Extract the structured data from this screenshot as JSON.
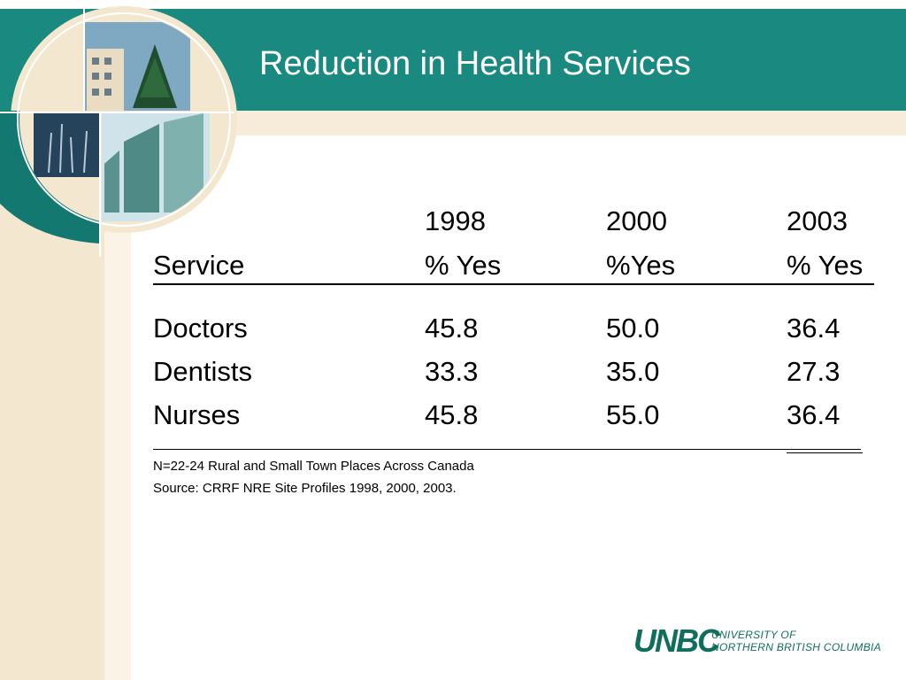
{
  "title": "Reduction in Health Services",
  "table": {
    "year_headers": [
      "1998",
      "2000",
      "2003"
    ],
    "column_headers": [
      "Service",
      "% Yes",
      "%Yes",
      "% Yes"
    ],
    "rows": [
      {
        "service": "Doctors",
        "values": [
          "45.8",
          "50.0",
          "36.4"
        ]
      },
      {
        "service": "Dentists",
        "values": [
          "33.3",
          "35.0",
          "27.3"
        ]
      },
      {
        "service": "Nurses",
        "values": [
          "45.8",
          "55.0",
          "36.4"
        ]
      }
    ]
  },
  "notes": {
    "sample": "N=22-24 Rural and Small Town Places Across Canada",
    "source": "Source: CRRF NRE Site Profiles 1998, 2000, 2003."
  },
  "logo": {
    "mark": "UNBC",
    "line1": "UNIVERSITY OF",
    "line2": "NORTHERN BRITISH COLUMBIA"
  },
  "colors": {
    "teal": "#1a8a80",
    "cream": "#f3e7d0",
    "logo_green": "#0f6e5c"
  }
}
